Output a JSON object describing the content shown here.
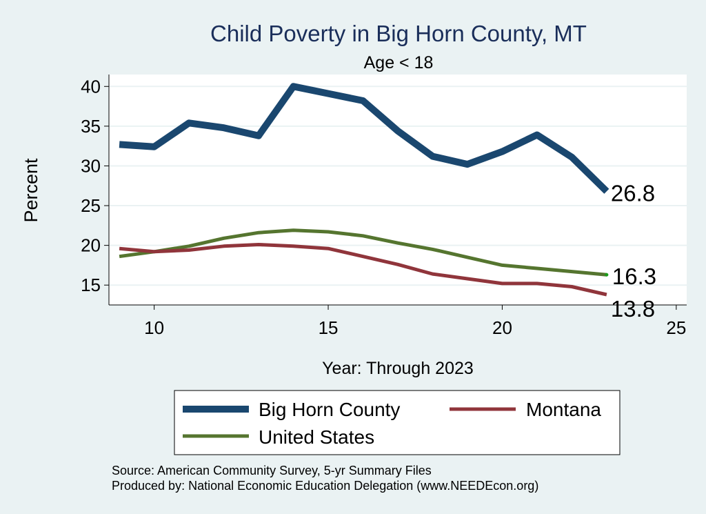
{
  "chart_data": {
    "type": "line",
    "title": "Child Poverty in Big Horn County, MT",
    "subtitle": "Age < 18",
    "xlabel": "Year: Through 2023",
    "ylabel": "Percent",
    "xlim": [
      8.7,
      25.3
    ],
    "ylim": [
      12.5,
      41.5
    ],
    "xticks": [
      10,
      15,
      20,
      25
    ],
    "yticks": [
      15,
      20,
      25,
      30,
      35,
      40
    ],
    "grid": true,
    "legend_position": "bottom",
    "series": [
      {
        "name": "Big Horn County",
        "color": "#1a476f",
        "width": 10,
        "x": [
          9,
          10,
          11,
          12,
          13,
          14,
          15,
          16,
          17,
          18,
          19,
          20,
          21,
          22,
          23
        ],
        "y": [
          32.7,
          32.4,
          35.4,
          34.8,
          33.8,
          40.0,
          39.1,
          38.2,
          34.4,
          31.2,
          30.2,
          31.8,
          33.9,
          31.1,
          26.8
        ],
        "end_label": "26.8"
      },
      {
        "name": "Montana",
        "color": "#90353b",
        "width": 5,
        "x": [
          9,
          10,
          11,
          12,
          13,
          14,
          15,
          16,
          17,
          18,
          19,
          20,
          21,
          22,
          23
        ],
        "y": [
          19.6,
          19.2,
          19.4,
          19.9,
          20.1,
          19.9,
          19.6,
          18.6,
          17.6,
          16.4,
          15.8,
          15.2,
          15.2,
          14.8,
          13.8
        ],
        "end_label": "13.8"
      },
      {
        "name": "United States",
        "color": "#55752f",
        "width": 5,
        "x": [
          9,
          10,
          11,
          12,
          13,
          14,
          15,
          16,
          17,
          18,
          19,
          20,
          21,
          22,
          23
        ],
        "y": [
          18.6,
          19.2,
          19.9,
          20.9,
          21.6,
          21.9,
          21.7,
          21.2,
          20.3,
          19.5,
          18.5,
          17.5,
          17.1,
          16.7,
          16.3
        ],
        "end_label": "16.3"
      }
    ]
  },
  "legend": {
    "items": [
      {
        "label": "Big Horn County",
        "color": "#1a476f",
        "width": 10
      },
      {
        "label": "Montana",
        "color": "#90353b",
        "width": 5
      },
      {
        "label": "United States",
        "color": "#55752f",
        "width": 5
      }
    ]
  },
  "footer": {
    "source": "Source: American Community Survey, 5-yr Summary Files",
    "produced": "Produced by: National Economic Education Delegation (www.NEEDEcon.org)"
  }
}
